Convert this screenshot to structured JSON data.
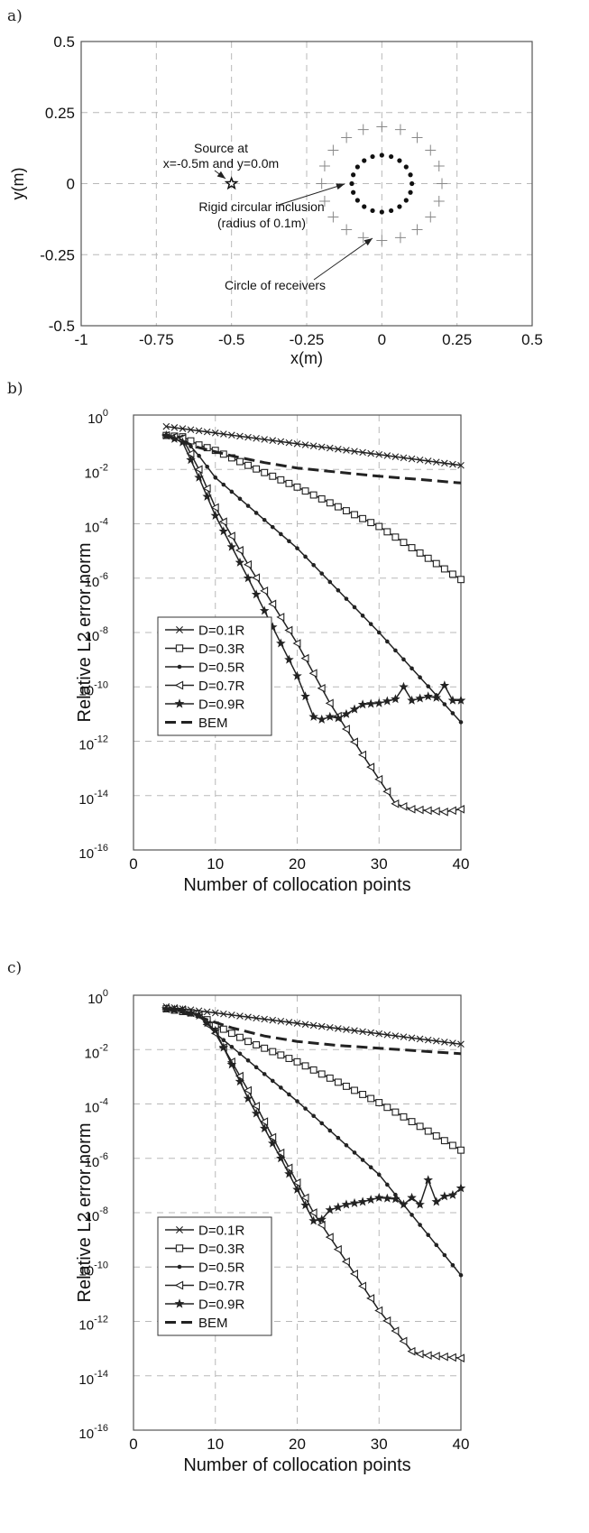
{
  "panels": {
    "a": {
      "label": "a)"
    },
    "b": {
      "label": "b)"
    },
    "c": {
      "label": "c)"
    }
  },
  "annotations": {
    "source": [
      "Source at",
      "x=-0.5m and y=0.0m"
    ],
    "inclusion": [
      "Rigid circular inclusion",
      "(radius of 0.1m)"
    ],
    "receivers": [
      "Circle of receivers"
    ]
  },
  "chart_data": [
    {
      "type": "scatter",
      "panel": "a",
      "xlabel": "x(m)",
      "ylabel": "y(m)",
      "xlim": [
        -1,
        0.5
      ],
      "ylim": [
        -0.5,
        0.5
      ],
      "xticks": [
        -1,
        -0.75,
        -0.5,
        -0.25,
        0,
        0.25,
        0.5
      ],
      "xtick_labels": [
        "-1",
        "-0.75",
        "-0.5",
        "-0.25",
        "0",
        "0.25",
        "0.5"
      ],
      "yticks": [
        -0.5,
        -0.25,
        0,
        0.25,
        0.5
      ],
      "ytick_labels": [
        "-0.5",
        "-0.25",
        "0",
        "0.25",
        "0.5"
      ],
      "grid": true,
      "source": {
        "x": -0.5,
        "y": 0.0,
        "marker": "star"
      },
      "inclusion": {
        "cx": 0,
        "cy": 0,
        "radius": 0.1,
        "points": 20,
        "marker": "dot"
      },
      "receivers": {
        "cx": 0,
        "cy": 0,
        "radius": 0.2,
        "points": 20,
        "marker": "plus"
      }
    },
    {
      "type": "line",
      "panel": "b",
      "xlabel": "Number of collocation points",
      "ylabel": "Relative L2 error norm",
      "xlim": [
        0,
        40
      ],
      "ylim_log10": [
        -16,
        0
      ],
      "y_scale": "log",
      "xticks": [
        0,
        10,
        20,
        30,
        40
      ],
      "xtick_labels": [
        "0",
        "10",
        "20",
        "30",
        "40"
      ],
      "ytick_exponents": [
        -16,
        -14,
        -12,
        -10,
        -8,
        -6,
        -4,
        -2,
        0
      ],
      "ytick_base": "10",
      "grid": true,
      "legend": "middle-left",
      "series": [
        {
          "name": "D=0.1R",
          "marker": "x",
          "log10_values": [
            [
              4,
              -0.42
            ],
            [
              40,
              -1.85
            ]
          ]
        },
        {
          "name": "D=0.3R",
          "marker": "square",
          "log10_values": [
            [
              4,
              -0.75
            ],
            [
              6,
              -0.8
            ],
            [
              8,
              -1.1
            ],
            [
              10,
              -1.3
            ],
            [
              14,
              -1.85
            ],
            [
              20,
              -2.65
            ],
            [
              30,
              -4.1
            ],
            [
              40,
              -6.05
            ]
          ]
        },
        {
          "name": "D=0.5R",
          "marker": "dot",
          "log10_values": [
            [
              4,
              -0.75
            ],
            [
              6,
              -0.8
            ],
            [
              8,
              -1.5
            ],
            [
              10,
              -2.3
            ],
            [
              20,
              -4.9
            ],
            [
              30,
              -8.0
            ],
            [
              40,
              -11.3
            ]
          ]
        },
        {
          "name": "D=0.7R",
          "marker": "triangle-left",
          "log10_values": [
            [
              4,
              -0.75
            ],
            [
              6,
              -0.85
            ],
            [
              8,
              -2.0
            ],
            [
              10,
              -3.4
            ],
            [
              14,
              -5.5
            ],
            [
              20,
              -8.4
            ],
            [
              24,
              -10.6
            ],
            [
              28,
              -12.5
            ],
            [
              32,
              -14.3
            ],
            [
              34,
              -14.5
            ],
            [
              36,
              -14.55
            ],
            [
              38,
              -14.6
            ],
            [
              40,
              -14.5
            ]
          ]
        },
        {
          "name": "D=0.9R",
          "marker": "star",
          "log10_values": [
            [
              4,
              -0.75
            ],
            [
              6,
              -1.0
            ],
            [
              8,
              -2.3
            ],
            [
              10,
              -3.7
            ],
            [
              14,
              -6.0
            ],
            [
              20,
              -9.6
            ],
            [
              22,
              -11.1
            ],
            [
              23,
              -11.2
            ],
            [
              24,
              -11.1
            ],
            [
              25,
              -11.15
            ],
            [
              26,
              -11.0
            ],
            [
              28,
              -10.65
            ],
            [
              30,
              -10.6
            ],
            [
              32,
              -10.45
            ],
            [
              33,
              -10.0
            ],
            [
              34,
              -10.5
            ],
            [
              36,
              -10.35
            ],
            [
              37,
              -10.4
            ],
            [
              38,
              -9.95
            ],
            [
              39,
              -10.5
            ],
            [
              40,
              -10.5
            ]
          ]
        },
        {
          "name": "BEM",
          "marker": "none",
          "log10_values": [
            [
              4,
              -0.75
            ],
            [
              8,
              -1.2
            ],
            [
              12,
              -1.5
            ],
            [
              16,
              -1.75
            ],
            [
              20,
              -1.95
            ],
            [
              25,
              -2.1
            ],
            [
              30,
              -2.25
            ],
            [
              35,
              -2.37
            ],
            [
              40,
              -2.5
            ]
          ]
        }
      ]
    },
    {
      "type": "line",
      "panel": "c",
      "xlabel": "Number of collocation points",
      "ylabel": "Relative L2 error norm",
      "xlim": [
        0,
        40
      ],
      "ylim_log10": [
        -16,
        0
      ],
      "y_scale": "log",
      "xticks": [
        0,
        10,
        20,
        30,
        40
      ],
      "xtick_labels": [
        "0",
        "10",
        "20",
        "30",
        "40"
      ],
      "ytick_exponents": [
        -16,
        -14,
        -12,
        -10,
        -8,
        -6,
        -4,
        -2,
        0
      ],
      "ytick_base": "10",
      "grid": true,
      "legend": "bottom-left",
      "series": [
        {
          "name": "D=0.1R",
          "marker": "x",
          "log10_values": [
            [
              4,
              -0.42
            ],
            [
              40,
              -1.8
            ]
          ]
        },
        {
          "name": "D=0.3R",
          "marker": "square",
          "log10_values": [
            [
              4,
              -0.5
            ],
            [
              6,
              -0.6
            ],
            [
              8,
              -0.7
            ],
            [
              10,
              -1.1
            ],
            [
              14,
              -1.7
            ],
            [
              20,
              -2.45
            ],
            [
              30,
              -3.95
            ],
            [
              40,
              -5.7
            ]
          ]
        },
        {
          "name": "D=0.5R",
          "marker": "dot",
          "log10_values": [
            [
              4,
              -0.5
            ],
            [
              6,
              -0.6
            ],
            [
              8,
              -0.7
            ],
            [
              10,
              -1.4
            ],
            [
              20,
              -3.9
            ],
            [
              30,
              -6.6
            ],
            [
              40,
              -10.3
            ]
          ]
        },
        {
          "name": "D=0.7R",
          "marker": "triangle-left",
          "log10_values": [
            [
              4,
              -0.5
            ],
            [
              6,
              -0.55
            ],
            [
              8,
              -0.75
            ],
            [
              10,
              -1.4
            ],
            [
              14,
              -3.5
            ],
            [
              18,
              -5.8
            ],
            [
              22,
              -8.0
            ],
            [
              26,
              -9.8
            ],
            [
              30,
              -11.6
            ],
            [
              34,
              -13.1
            ],
            [
              35,
              -13.2
            ],
            [
              36,
              -13.25
            ],
            [
              38,
              -13.3
            ],
            [
              40,
              -13.35
            ]
          ]
        },
        {
          "name": "D=0.9R",
          "marker": "star",
          "log10_values": [
            [
              4,
              -0.5
            ],
            [
              6,
              -0.55
            ],
            [
              8,
              -0.75
            ],
            [
              10,
              -1.3
            ],
            [
              14,
              -3.8
            ],
            [
              18,
              -6.0
            ],
            [
              22,
              -8.3
            ],
            [
              23,
              -8.25
            ],
            [
              24,
              -7.9
            ],
            [
              26,
              -7.7
            ],
            [
              28,
              -7.6
            ],
            [
              30,
              -7.45
            ],
            [
              32,
              -7.5
            ],
            [
              33,
              -7.7
            ],
            [
              34,
              -7.45
            ],
            [
              35,
              -7.7
            ],
            [
              36,
              -6.8
            ],
            [
              37,
              -7.6
            ],
            [
              38,
              -7.4
            ],
            [
              39,
              -7.35
            ],
            [
              40,
              -7.1
            ]
          ]
        },
        {
          "name": "BEM",
          "marker": "none",
          "log10_values": [
            [
              4,
              -0.5
            ],
            [
              8,
              -0.8
            ],
            [
              12,
              -1.2
            ],
            [
              16,
              -1.5
            ],
            [
              20,
              -1.7
            ],
            [
              25,
              -1.85
            ],
            [
              30,
              -1.95
            ],
            [
              35,
              -2.05
            ],
            [
              40,
              -2.15
            ]
          ]
        }
      ]
    }
  ]
}
